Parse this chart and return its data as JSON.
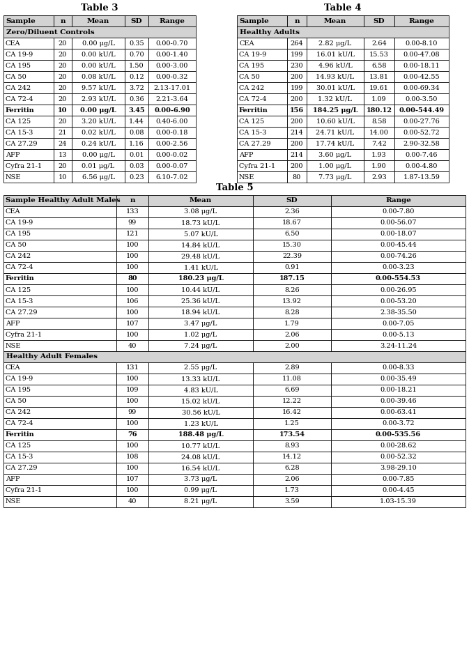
{
  "table3_title": "Table 3",
  "table4_title": "Table 4",
  "table5_title": "Table 5",
  "table3_header": [
    "Sample",
    "n",
    "Mean",
    "SD",
    "Range"
  ],
  "table3_subheader": "Zero/Diluent Controls",
  "table3_bold_rows": [
    "Ferritin"
  ],
  "table3_rows": [
    [
      "CEA",
      "20",
      "0.00 μg/L",
      "0.35",
      "0.00-0.70"
    ],
    [
      "CA 19-9",
      "20",
      "0.00 kU/L",
      "0.70",
      "0.00-1.40"
    ],
    [
      "CA 195",
      "20",
      "0.00 kU/L",
      "1.50",
      "0.00-3.00"
    ],
    [
      "CA 50",
      "20",
      "0.08 kU/L",
      "0.12",
      "0.00-0.32"
    ],
    [
      "CA 242",
      "20",
      "9.57 kU/L",
      "3.72",
      "2.13-17.01"
    ],
    [
      "CA 72-4",
      "20",
      "2.93 kU/L",
      "0.36",
      "2.21-3.64"
    ],
    [
      "Ferritin",
      "10",
      "0.00 μg/L",
      "3.45",
      "0.00-6.90"
    ],
    [
      "CA 125",
      "20",
      "3.20 kU/L",
      "1.44",
      "0.40-6.00"
    ],
    [
      "CA 15-3",
      "21",
      "0.02 kU/L",
      "0.08",
      "0.00-0.18"
    ],
    [
      "CA 27.29",
      "24",
      "0.24 kU/L",
      "1.16",
      "0.00-2.56"
    ],
    [
      "AFP",
      "13",
      "0.00 μg/L",
      "0.01",
      "0.00-0.02"
    ],
    [
      "Cyfra 21-1",
      "20",
      "0.01 μg/L",
      "0.03",
      "0.00-0.07"
    ],
    [
      "NSE",
      "10",
      "6.56 μg/L",
      "0.23",
      "6.10-7.02"
    ]
  ],
  "table4_header": [
    "Sample",
    "n",
    "Mean",
    "SD",
    "Range"
  ],
  "table4_subheader": "Healthy Adults",
  "table4_bold_rows": [
    "Ferritin"
  ],
  "table4_rows": [
    [
      "CEA",
      "264",
      "2.82 μg/L",
      "2.64",
      "0.00-8.10"
    ],
    [
      "CA 19-9",
      "199",
      "16.01 kU/L",
      "15.53",
      "0.00-47.08"
    ],
    [
      "CA 195",
      "230",
      "4.96 kU/L",
      "6.58",
      "0.00-18.11"
    ],
    [
      "CA 50",
      "200",
      "14.93 kU/L",
      "13.81",
      "0.00-42.55"
    ],
    [
      "CA 242",
      "199",
      "30.01 kU/L",
      "19.61",
      "0.00-69.34"
    ],
    [
      "CA 72-4",
      "200",
      "1.32 kU/L",
      "1.09",
      "0.00-3.50"
    ],
    [
      "Ferritin",
      "156",
      "184.25 μg/L",
      "180.12",
      "0.00-544.49"
    ],
    [
      "CA 125",
      "200",
      "10.60 kU/L",
      "8.58",
      "0.00-27.76"
    ],
    [
      "CA 15-3",
      "214",
      "24.71 kU/L",
      "14.00",
      "0.00-52.72"
    ],
    [
      "CA 27.29",
      "200",
      "17.74 kU/L",
      "7.42",
      "2.90-32.58"
    ],
    [
      "AFP",
      "214",
      "3.60 μg/L",
      "1.93",
      "0.00-7.46"
    ],
    [
      "Cyfra 21-1",
      "200",
      "1.00 μg/L",
      "1.90",
      "0.00-4.80"
    ],
    [
      "NSE",
      "80",
      "7.73 μg/L",
      "2.93",
      "1.87-13.59"
    ]
  ],
  "table5_header": [
    "Sample Healthy Adult Males",
    "n",
    "Mean",
    "SD",
    "Range"
  ],
  "table5_bold_rows_males": [
    "Ferritin"
  ],
  "table5_rows_males": [
    [
      "CEA",
      "133",
      "3.08 μg/L",
      "2.36",
      "0.00-7.80"
    ],
    [
      "CA 19-9",
      "99",
      "18.73 kU/L",
      "18.67",
      "0.00-56.07"
    ],
    [
      "CA 195",
      "121",
      "5.07 kU/L",
      "6.50",
      "0.00-18.07"
    ],
    [
      "CA 50",
      "100",
      "14.84 kU/L",
      "15.30",
      "0.00-45.44"
    ],
    [
      "CA 242",
      "100",
      "29.48 kU/L",
      "22.39",
      "0.00-74.26"
    ],
    [
      "CA 72-4",
      "100",
      "1.41 kU/L",
      "0.91",
      "0.00-3.23"
    ],
    [
      "Ferritin",
      "80",
      "180.23 μg/L",
      "187.15",
      "0.00-554.53"
    ],
    [
      "CA 125",
      "100",
      "10.44 kU/L",
      "8.26",
      "0.00-26.95"
    ],
    [
      "CA 15-3",
      "106",
      "25.36 kU/L",
      "13.92",
      "0.00-53.20"
    ],
    [
      "CA 27.29",
      "100",
      "18.94 kU/L",
      "8.28",
      "2.38-35.50"
    ],
    [
      "AFP",
      "107",
      "3.47 μg/L",
      "1.79",
      "0.00-7.05"
    ],
    [
      "Cyfra 21-1",
      "100",
      "1.02 μg/L",
      "2.06",
      "0.00-5.13"
    ],
    [
      "NSE",
      "40",
      "7.24 μg/L",
      "2.00",
      "3.24-11.24"
    ]
  ],
  "table5_subheader_females": "Healthy Adult Females",
  "table5_bold_rows_females": [
    "Ferritin"
  ],
  "table5_rows_females": [
    [
      "CEA",
      "131",
      "2.55 μg/L",
      "2.89",
      "0.00-8.33"
    ],
    [
      "CA 19-9",
      "100",
      "13.33 kU/L",
      "11.08",
      "0.00-35.49"
    ],
    [
      "CA 195",
      "109",
      "4.83 kU/L",
      "6.69",
      "0.00-18.21"
    ],
    [
      "CA 50",
      "100",
      "15.02 kU/L",
      "12.22",
      "0.00-39.46"
    ],
    [
      "CA 242",
      "99",
      "30.56 kU/L",
      "16.42",
      "0.00-63.41"
    ],
    [
      "CA 72-4",
      "100",
      "1.23 kU/L",
      "1.25",
      "0.00-3.72"
    ],
    [
      "Ferritin",
      "76",
      "188.48 μg/L",
      "173.54",
      "0.00-535.56"
    ],
    [
      "CA 125",
      "100",
      "10.77 kU/L",
      "8.93",
      "0.00-28.62"
    ],
    [
      "CA 15-3",
      "108",
      "24.08 kU/L",
      "14.12",
      "0.00-52.32"
    ],
    [
      "CA 27.29",
      "100",
      "16.54 kU/L",
      "6.28",
      "3.98-29.10"
    ],
    [
      "AFP",
      "107",
      "3.73 μg/L",
      "2.06",
      "0.00-7.85"
    ],
    [
      "Cyfra 21-1",
      "100",
      "0.99 μg/L",
      "1.73",
      "0.00-4.45"
    ],
    [
      "NSE",
      "40",
      "8.21 μg/L",
      "3.59",
      "1.03-15.39"
    ]
  ],
  "header_bg": "#d3d3d3",
  "row_bg": "#ffffff",
  "font_size": 7.0,
  "header_font_size": 7.5,
  "title_font_size": 9.5
}
